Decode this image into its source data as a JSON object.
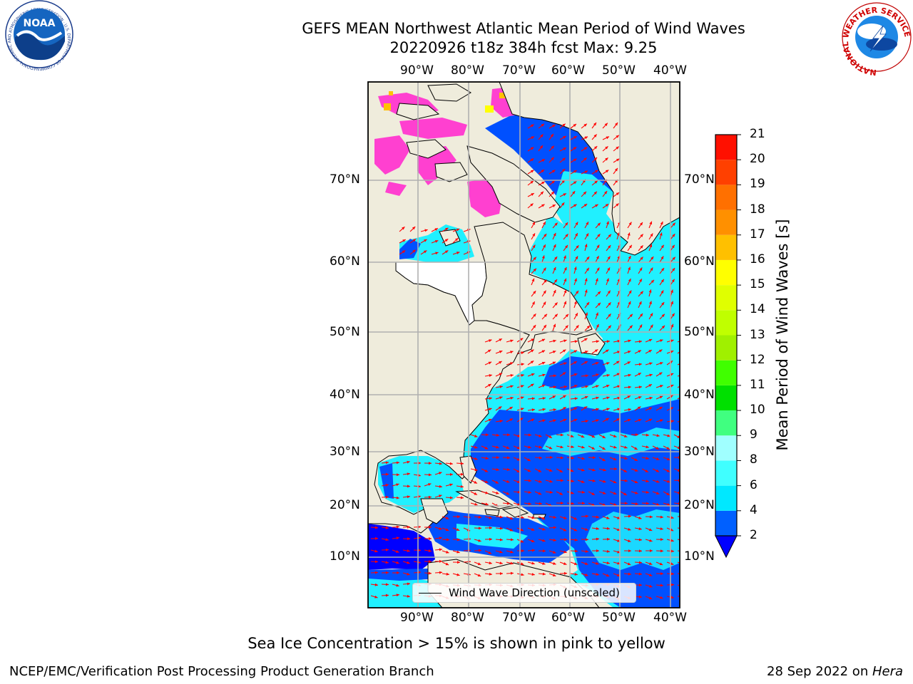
{
  "header": {
    "title_line1": "GEFS MEAN Northwest Atlantic Mean Period of Wind Waves",
    "title_line2": "20220926 t18z 384h fcst   Max: 9.25"
  },
  "logos": {
    "noaa_text": "NOAA",
    "noaa_ring_text": "NATIONAL OCEANIC AND ATMOSPHERIC ADMINISTRATION · U.S. DEPARTMENT OF COMMERCE",
    "nws_ring_text": "NATIONAL WEATHER SERVICE"
  },
  "map": {
    "lon_labels": [
      "90°W",
      "80°W",
      "70°W",
      "60°W",
      "50°W",
      "40°W"
    ],
    "lat_labels": [
      "70°N",
      "60°N",
      "50°N",
      "40°N",
      "30°N",
      "20°N",
      "10°N"
    ],
    "legend_label": "Wind Wave Direction (unscaled)"
  },
  "colorbar": {
    "label": "Mean Period of Wind Waves [s]",
    "ticks": [
      "2",
      "4",
      "6",
      "8",
      "9",
      "10",
      "11",
      "12",
      "13",
      "14",
      "15",
      "16",
      "17",
      "18",
      "19",
      "20",
      "21"
    ],
    "colors": [
      "#0060ff",
      "#00e8ff",
      "#40ffff",
      "#a0ffff",
      "#40ff80",
      "#00e000",
      "#40ff00",
      "#a0f000",
      "#c0ff00",
      "#e0ff00",
      "#ffff00",
      "#ffc000",
      "#ff9000",
      "#ff7000",
      "#ff4000",
      "#ff1000"
    ],
    "under_color": "#0000ff"
  },
  "colors": {
    "land": "#efecdc",
    "grid": "#b0b0b0",
    "arrow": "#ff0000",
    "ice": "#ff40d0",
    "deep": "#0050ff",
    "cyan": "#20f0ff"
  },
  "caption": "Sea Ice Concentration > 15% is shown in pink to yellow",
  "footer": {
    "left": "NCEP/EMC/Verification Post Processing Product Generation Branch",
    "right_date": "28 Sep 2022 on ",
    "right_host": "Hera"
  }
}
